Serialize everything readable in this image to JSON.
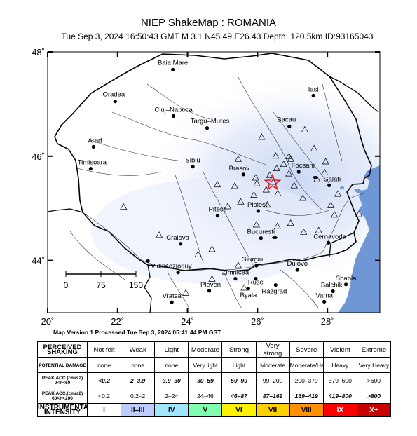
{
  "header": {
    "title": "NIEP ShakeMap : ROMANIA",
    "subtitle": "Tue Sep  3, 2024 16:50:43 GMT   M 3.1   N45.49 E26.43   Depth: 120.5km   ID:93165043"
  },
  "map": {
    "lon_range": [
      20,
      29.5
    ],
    "lat_range": [
      43,
      48
    ],
    "lat_ticks": [
      {
        "value": 48,
        "label": "48˚"
      },
      {
        "value": 46,
        "label": "46˚"
      },
      {
        "value": 44,
        "label": "44˚"
      }
    ],
    "lon_ticks": [
      {
        "value": 20,
        "label": "20˚"
      },
      {
        "value": 22,
        "label": "22˚"
      },
      {
        "value": 24,
        "label": "24˚"
      },
      {
        "value": 26,
        "label": "26˚"
      },
      {
        "value": 28,
        "label": "28˚"
      }
    ],
    "epicenter": {
      "lon": 26.43,
      "lat": 45.49,
      "color": "#e8141c"
    },
    "colors": {
      "water": "#6f97d5",
      "light_shaking": "#d9e2f7",
      "border": "#000000"
    },
    "scale_bar": {
      "labels": [
        "0",
        "75",
        "150"
      ]
    },
    "cities": [
      {
        "name": "Baia Mare",
        "lon": 23.58,
        "lat": 47.66
      },
      {
        "name": "Oradea",
        "lon": 21.93,
        "lat": 47.05
      },
      {
        "name": "Cluj–Napoca",
        "lon": 23.6,
        "lat": 46.77
      },
      {
        "name": "Targu–Mures",
        "lon": 24.56,
        "lat": 46.54
      },
      {
        "name": "Iasi",
        "lon": 27.6,
        "lat": 47.16
      },
      {
        "name": "Bacau",
        "lon": 26.91,
        "lat": 46.57
      },
      {
        "name": "Arad",
        "lon": 21.31,
        "lat": 46.18
      },
      {
        "name": "Timisoara",
        "lon": 21.23,
        "lat": 45.76
      },
      {
        "name": "Sibiu",
        "lon": 24.15,
        "lat": 45.8
      },
      {
        "name": "Brasov",
        "lon": 25.6,
        "lat": 45.65
      },
      {
        "name": "Focsani",
        "lon": 27.18,
        "lat": 45.7
      },
      {
        "name": "Galati",
        "lon": 28.05,
        "lat": 45.44
      },
      {
        "name": "Ploiesti",
        "lon": 26.02,
        "lat": 44.95
      },
      {
        "name": "Pitesti",
        "lon": 24.86,
        "lat": 44.86
      },
      {
        "name": "Bucuresti",
        "lon": 26.1,
        "lat": 44.43
      },
      {
        "name": "Craiova",
        "lon": 23.8,
        "lat": 44.32
      },
      {
        "name": "Cernavoda",
        "lon": 28.03,
        "lat": 44.34
      },
      {
        "name": "Giurgiu",
        "lon": 25.97,
        "lat": 43.9
      },
      {
        "name": "Zimnicea",
        "lon": 25.37,
        "lat": 43.65
      },
      {
        "name": "Ruse",
        "lon": 25.95,
        "lat": 43.65
      },
      {
        "name": "Dulovo",
        "lon": 27.14,
        "lat": 43.82
      },
      {
        "name": "Kozloduy",
        "lon": 23.73,
        "lat": 43.77
      },
      {
        "name": "Vidin",
        "lon": 22.87,
        "lat": 43.99
      },
      {
        "name": "Pleven",
        "lon": 24.62,
        "lat": 43.42
      },
      {
        "name": "Byala",
        "lon": 25.74,
        "lat": 43.46
      },
      {
        "name": "Razgrad",
        "lon": 26.52,
        "lat": 43.53
      },
      {
        "name": "Shabla",
        "lon": 28.53,
        "lat": 43.54
      },
      {
        "name": "Balchik",
        "lon": 28.16,
        "lat": 43.41
      },
      {
        "name": "Vratsa",
        "lon": 23.55,
        "lat": 43.2
      },
      {
        "name": "Varna",
        "lon": 27.91,
        "lat": 43.21
      }
    ],
    "stations": [
      {
        "lon": 27.35,
        "lat": 46.5
      },
      {
        "lon": 27.62,
        "lat": 46.14
      },
      {
        "lon": 26.12,
        "lat": 46.36
      },
      {
        "lon": 26.52,
        "lat": 46.0
      },
      {
        "lon": 26.9,
        "lat": 45.99
      },
      {
        "lon": 26.95,
        "lat": 45.94
      },
      {
        "lon": 26.75,
        "lat": 45.84
      },
      {
        "lon": 26.55,
        "lat": 45.76
      },
      {
        "lon": 26.9,
        "lat": 45.66
      },
      {
        "lon": 26.35,
        "lat": 45.63
      },
      {
        "lon": 25.95,
        "lat": 45.58
      },
      {
        "lon": 26.45,
        "lat": 45.5
      },
      {
        "lon": 25.45,
        "lat": 45.94
      },
      {
        "lon": 25.35,
        "lat": 45.42
      },
      {
        "lon": 24.85,
        "lat": 45.45
      },
      {
        "lon": 25.98,
        "lat": 45.47
      },
      {
        "lon": 26.25,
        "lat": 45.35
      },
      {
        "lon": 25.9,
        "lat": 45.25
      },
      {
        "lon": 26.58,
        "lat": 45.28
      },
      {
        "lon": 25.52,
        "lat": 45.12
      },
      {
        "lon": 25.15,
        "lat": 45.03
      },
      {
        "lon": 26.28,
        "lat": 45.06
      },
      {
        "lon": 27.3,
        "lat": 45.19
      },
      {
        "lon": 27.05,
        "lat": 45.43
      },
      {
        "lon": 27.7,
        "lat": 45.55
      },
      {
        "lon": 27.92,
        "lat": 45.68
      },
      {
        "lon": 27.95,
        "lat": 45.89
      },
      {
        "lon": 28.3,
        "lat": 45.27
      },
      {
        "lon": 28.1,
        "lat": 45.05
      },
      {
        "lon": 28.2,
        "lat": 44.87
      },
      {
        "lon": 28.9,
        "lat": 44.88
      },
      {
        "lon": 26.95,
        "lat": 44.71
      },
      {
        "lon": 26.57,
        "lat": 44.65
      },
      {
        "lon": 25.97,
        "lat": 44.68
      },
      {
        "lon": 23.19,
        "lat": 44.48
      },
      {
        "lon": 22.17,
        "lat": 45.02
      },
      {
        "lon": 24.3,
        "lat": 44.11
      },
      {
        "lon": 24.7,
        "lat": 44.21
      },
      {
        "lon": 25.45,
        "lat": 43.9
      },
      {
        "lon": 25.62,
        "lat": 43.47
      },
      {
        "lon": 27.75,
        "lat": 44.57
      },
      {
        "lon": 27.32,
        "lat": 44.54
      },
      {
        "lon": 24.7,
        "lat": 43.64
      },
      {
        "lon": 23.95,
        "lat": 43.37
      }
    ]
  },
  "processed": "Map Version 1 Processed Tue Sep  3, 2024 05:41:44 PM GST",
  "legend": {
    "rows": [
      {
        "label": "PERCEIVED SHAKING",
        "cells": [
          "Not felt",
          "Weak",
          "Light",
          "Moderate",
          "Strong",
          "Very strong",
          "Severe",
          "Violent",
          "Extreme"
        ]
      },
      {
        "label": "POTENTIAL DAMAGE",
        "cells": [
          "none",
          "none",
          "none",
          "Very light",
          "Light",
          "Moderate",
          "Moderate/Heavy",
          "Heavy",
          "Very Heavy"
        ]
      },
      {
        "label": "PEAK ACC.(cm/s2) 0<h<60",
        "cells": [
          "<0.2",
          "2–3.9",
          "3.9–30",
          "30–59",
          "59–99",
          "99–200",
          "200–379",
          "379–600",
          ">600"
        ]
      },
      {
        "label": "PEAK ACC.(cm/s2) 60<h<200",
        "cells": [
          "<0.2",
          "0.2–2",
          "2–24",
          "24–46",
          "46–87",
          "87–169",
          "169–419",
          "419–800",
          ">800"
        ]
      },
      {
        "label": "INSTRUMENTAL INTENSITY",
        "cells": [
          "I",
          "II–III",
          "IV",
          "V",
          "VI",
          "VII",
          "VIII",
          "IX",
          "X+"
        ]
      }
    ],
    "italic_row2": [
      true,
      true,
      true,
      true,
      true,
      false,
      false,
      false,
      false
    ],
    "italic_row3": [
      false,
      false,
      false,
      false,
      true,
      true,
      true,
      true,
      true
    ],
    "intensity_colors": [
      "#ffffff",
      "#bfccff",
      "#a0e6ff",
      "#80ffb0",
      "#fff200",
      "#ffd000",
      "#ff9000",
      "#ff0000",
      "#c80000"
    ]
  }
}
